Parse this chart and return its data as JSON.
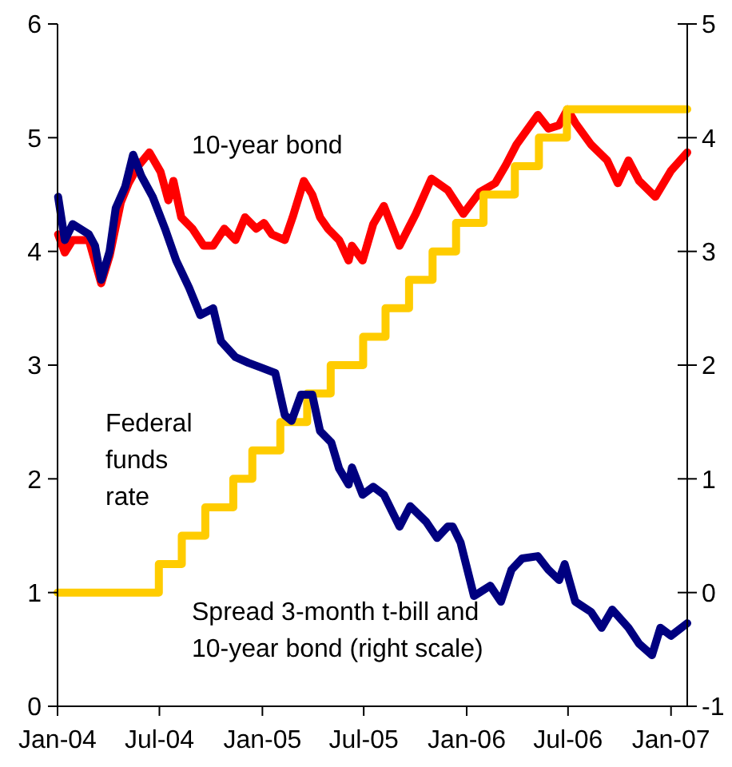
{
  "chart_data": {
    "type": "line",
    "xlim": [
      "2004-01-01",
      "2007-01-30"
    ],
    "xticks": [
      {
        "value": "2004-01-01",
        "label": "Jan-04"
      },
      {
        "value": "2004-07-01",
        "label": "Jul-04"
      },
      {
        "value": "2005-01-01",
        "label": "Jan-05"
      },
      {
        "value": "2005-07-01",
        "label": "Jul-05"
      },
      {
        "value": "2006-01-01",
        "label": "Jan-06"
      },
      {
        "value": "2006-07-01",
        "label": "Jul-06"
      },
      {
        "value": "2007-01-01",
        "label": "Jan-07"
      }
    ],
    "ylim": [
      0,
      6
    ],
    "yticks": [
      0,
      1,
      2,
      3,
      4,
      5,
      6
    ],
    "y2lim": [
      -1,
      5
    ],
    "y2ticks": [
      -1,
      0,
      1,
      2,
      3,
      4,
      5
    ],
    "grid": false,
    "series": [
      {
        "name": "10-year bond",
        "color": "#ff0000",
        "x": [
          "2004-01-02",
          "2004-01-14",
          "2004-01-28",
          "2004-02-26",
          "2004-03-19",
          "2004-04-03",
          "2004-04-23",
          "2004-05-07",
          "2004-05-24",
          "2004-06-13",
          "2004-07-03",
          "2004-07-17",
          "2004-07-26",
          "2004-08-09",
          "2004-08-29",
          "2004-09-18",
          "2004-10-05",
          "2004-10-25",
          "2004-11-14",
          "2004-12-01",
          "2004-12-21",
          "2005-01-04",
          "2005-01-18",
          "2005-02-10",
          "2005-02-24",
          "2005-03-16",
          "2005-03-31",
          "2005-04-14",
          "2005-04-28",
          "2005-05-18",
          "2005-06-04",
          "2005-06-10",
          "2005-06-29",
          "2005-07-18",
          "2005-08-06",
          "2005-09-03",
          "2005-10-02",
          "2005-10-30",
          "2005-11-28",
          "2005-12-26",
          "2006-01-24",
          "2006-02-21",
          "2006-03-12",
          "2006-03-31",
          "2006-05-08",
          "2006-05-27",
          "2006-06-15",
          "2006-06-30",
          "2006-07-14",
          "2006-08-11",
          "2006-09-09",
          "2006-09-28",
          "2006-10-17",
          "2006-11-05",
          "2006-12-04",
          "2007-01-01",
          "2007-01-30"
        ],
        "values": [
          4.15,
          3.99,
          4.1,
          4.1,
          3.72,
          3.96,
          4.43,
          4.6,
          4.75,
          4.87,
          4.7,
          4.45,
          4.62,
          4.3,
          4.2,
          4.05,
          4.05,
          4.2,
          4.1,
          4.3,
          4.2,
          4.25,
          4.15,
          4.1,
          4.3,
          4.62,
          4.5,
          4.3,
          4.2,
          4.1,
          3.92,
          4.05,
          3.92,
          4.24,
          4.4,
          4.05,
          4.33,
          4.64,
          4.54,
          4.33,
          4.52,
          4.6,
          4.76,
          4.94,
          5.2,
          5.08,
          5.11,
          5.25,
          5.13,
          4.94,
          4.8,
          4.6,
          4.8,
          4.62,
          4.48,
          4.71,
          4.87
        ]
      },
      {
        "name": "Federal funds rate",
        "type": "step",
        "color": "#ffcc00",
        "x": [
          "2004-01-01",
          "2004-06-30",
          "2004-08-10",
          "2004-09-21",
          "2004-11-10",
          "2004-12-14",
          "2005-02-02",
          "2005-03-22",
          "2005-05-03",
          "2005-06-30",
          "2005-08-09",
          "2005-09-20",
          "2005-11-01",
          "2005-12-13",
          "2006-01-31",
          "2006-03-28",
          "2006-05-10",
          "2006-06-29",
          "2007-01-30"
        ],
        "values": [
          1,
          1.25,
          1.5,
          1.75,
          2,
          2.25,
          2.5,
          2.75,
          3,
          3.25,
          3.5,
          3.75,
          4,
          4.25,
          4.5,
          4.75,
          5,
          5.25,
          5.25
        ]
      },
      {
        "name": "Spread 3-month t-bill and 10-year bond (right scale)",
        "axis": "y2",
        "color": "#000080",
        "x": [
          "2004-01-02",
          "2004-01-14",
          "2004-01-28",
          "2004-02-26",
          "2004-03-08",
          "2004-03-19",
          "2004-04-03",
          "2004-04-14",
          "2004-05-01",
          "2004-05-15",
          "2004-05-30",
          "2004-06-19",
          "2004-07-11",
          "2004-07-31",
          "2004-08-23",
          "2004-09-12",
          "2004-10-05",
          "2004-10-19",
          "2004-11-14",
          "2004-12-07",
          "2004-12-29",
          "2005-01-24",
          "2005-02-10",
          "2005-02-22",
          "2005-03-11",
          "2005-03-31",
          "2005-04-14",
          "2005-05-04",
          "2005-05-18",
          "2005-06-04",
          "2005-06-10",
          "2005-06-29",
          "2005-07-18",
          "2005-08-06",
          "2005-09-03",
          "2005-09-22",
          "2005-10-21",
          "2005-11-09",
          "2005-11-28",
          "2005-12-07",
          "2005-12-21",
          "2006-01-14",
          "2006-02-12",
          "2006-03-03",
          "2006-03-22",
          "2006-04-10",
          "2006-05-08",
          "2006-05-27",
          "2006-06-15",
          "2006-06-25",
          "2006-07-14",
          "2006-08-11",
          "2006-08-30",
          "2006-09-18",
          "2006-10-17",
          "2006-11-05",
          "2006-11-28",
          "2006-12-13",
          "2007-01-01",
          "2007-01-30"
        ],
        "values": [
          3.48,
          3.1,
          3.24,
          3.15,
          3.05,
          2.75,
          3.0,
          3.38,
          3.57,
          3.85,
          3.66,
          3.48,
          3.2,
          2.92,
          2.68,
          2.44,
          2.5,
          2.21,
          2.07,
          2.02,
          1.98,
          1.93,
          1.56,
          1.51,
          1.74,
          1.74,
          1.42,
          1.32,
          1.09,
          0.95,
          1.1,
          0.86,
          0.93,
          0.86,
          0.58,
          0.76,
          0.62,
          0.48,
          0.58,
          0.58,
          0.44,
          -0.03,
          0.06,
          -0.08,
          0.2,
          0.3,
          0.32,
          0.2,
          0.11,
          0.25,
          -0.08,
          -0.17,
          -0.31,
          -0.15,
          -0.31,
          -0.45,
          -0.55,
          -0.31,
          -0.38,
          -0.27
        ]
      }
    ]
  }
}
